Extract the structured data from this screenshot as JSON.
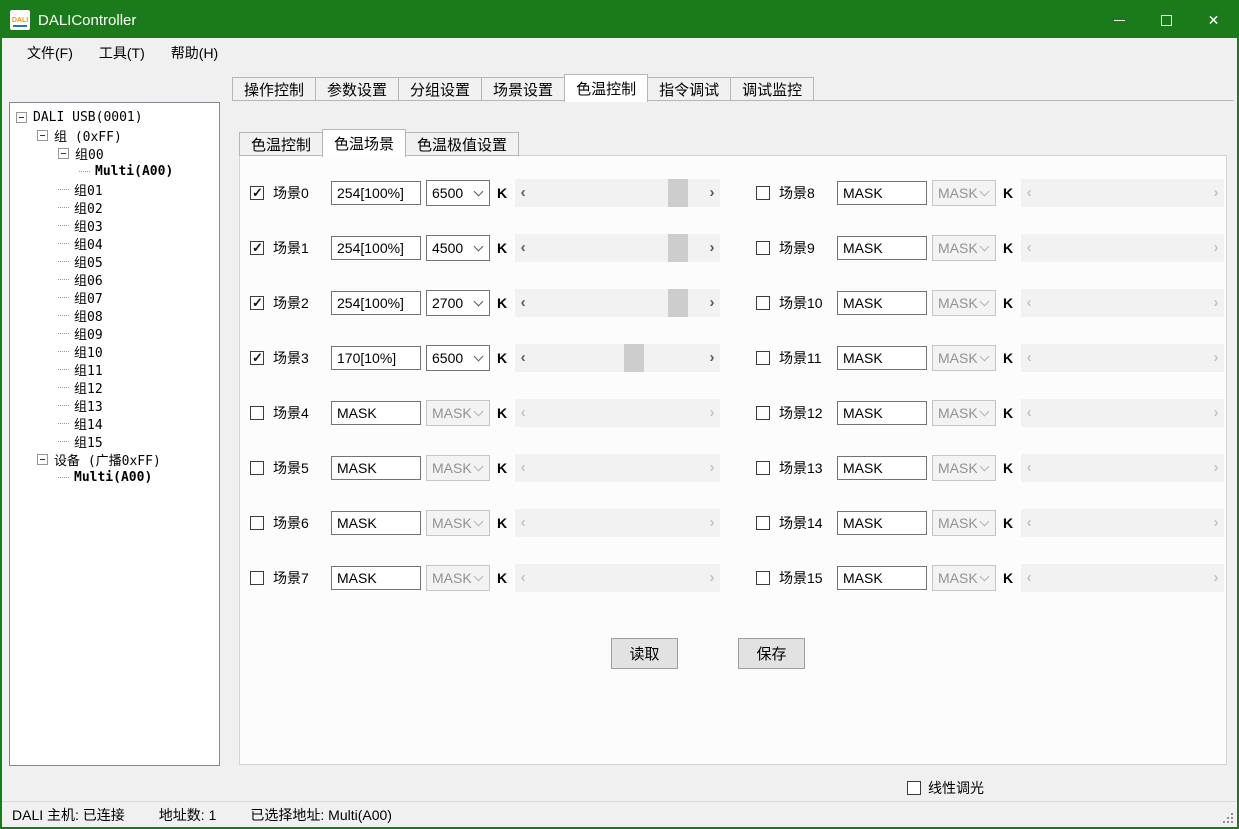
{
  "window": {
    "title": "DALIController",
    "icon_text": "DALI"
  },
  "menu": {
    "items": [
      "文件(F)",
      "工具(T)",
      "帮助(H)"
    ]
  },
  "tree": {
    "items": [
      "DALI USB(0001)",
      "组 (0xFF)",
      "组00",
      "Multi(A00)",
      "组01",
      "组02",
      "组03",
      "组04",
      "组05",
      "组06",
      "组07",
      "组08",
      "组09",
      "组10",
      "组11",
      "组12",
      "组13",
      "组14",
      "组15",
      "设备 (广播0xFF)",
      "Multi(A00)"
    ]
  },
  "tabs": {
    "items": [
      "操作控制",
      "参数设置",
      "分组设置",
      "场景设置",
      "色温控制",
      "指令调试",
      "调试监控"
    ],
    "active": "色温控制"
  },
  "subtabs": {
    "items": [
      "色温控制",
      "色温场景",
      "色温极值设置"
    ],
    "active": "色温场景"
  },
  "icons": {
    "scroll_left": "‹",
    "scroll_right": "›"
  },
  "scenes": {
    "unit": "K",
    "left": [
      {
        "label": "场景0",
        "checked": true,
        "value": "254[100%]",
        "temp": "6500",
        "thumb": 79
      },
      {
        "label": "场景1",
        "checked": true,
        "value": "254[100%]",
        "temp": "4500",
        "thumb": 79
      },
      {
        "label": "场景2",
        "checked": true,
        "value": "254[100%]",
        "temp": "2700",
        "thumb": 79
      },
      {
        "label": "场景3",
        "checked": true,
        "value": "170[10%]",
        "temp": "6500",
        "thumb": 54
      },
      {
        "label": "场景4",
        "checked": false,
        "value": "MASK",
        "temp": "MASK",
        "disabled": true
      },
      {
        "label": "场景5",
        "checked": false,
        "value": "MASK",
        "temp": "MASK",
        "disabled": true
      },
      {
        "label": "场景6",
        "checked": false,
        "value": "MASK",
        "temp": "MASK",
        "disabled": true
      },
      {
        "label": "场景7",
        "checked": false,
        "value": "MASK",
        "temp": "MASK",
        "disabled": true
      }
    ],
    "right": [
      {
        "label": "场景8",
        "checked": false,
        "value": "MASK",
        "temp": "MASK",
        "disabled": true
      },
      {
        "label": "场景9",
        "checked": false,
        "value": "MASK",
        "temp": "MASK",
        "disabled": true
      },
      {
        "label": "场景10",
        "checked": false,
        "value": "MASK",
        "temp": "MASK",
        "disabled": true
      },
      {
        "label": "场景11",
        "checked": false,
        "value": "MASK",
        "temp": "MASK",
        "disabled": true
      },
      {
        "label": "场景12",
        "checked": false,
        "value": "MASK",
        "temp": "MASK",
        "disabled": true
      },
      {
        "label": "场景13",
        "checked": false,
        "value": "MASK",
        "temp": "MASK",
        "disabled": true
      },
      {
        "label": "场景14",
        "checked": false,
        "value": "MASK",
        "temp": "MASK",
        "disabled": true
      },
      {
        "label": "场景15",
        "checked": false,
        "value": "MASK",
        "temp": "MASK",
        "disabled": true
      }
    ]
  },
  "buttons": {
    "read": "读取",
    "save": "保存"
  },
  "footer": {
    "linear_label": "线性调光"
  },
  "statusbar": {
    "host": "DALI 主机: 已连接",
    "addr_count": "地址数: 1",
    "selected": "已选择地址: Multi(A00)"
  },
  "colors": {
    "titlebar_green": "#1b7b1b",
    "scrollbar_thumb": "#cdcdcd",
    "scrollbar_track": "#f2f2f2"
  }
}
